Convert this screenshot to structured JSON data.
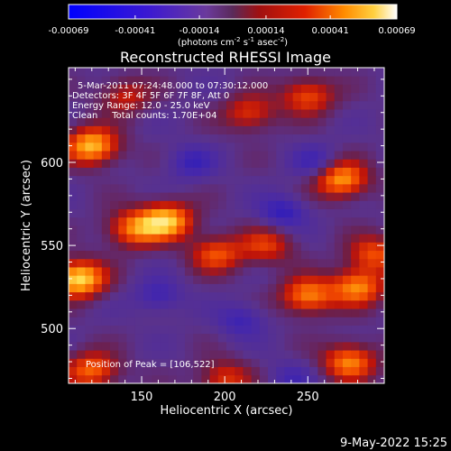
{
  "chart_data": {
    "type": "heatmap",
    "title": "Reconstructed RHESSI Image",
    "xlabel": "Heliocentric X (arcsec)",
    "ylabel": "Heliocentric Y (arcsec)",
    "xlim": [
      106,
      296
    ],
    "ylim": [
      467,
      657
    ],
    "x_ticks": [
      150,
      200,
      250
    ],
    "y_ticks": [
      500,
      550,
      600
    ],
    "colorbar": {
      "label_main": "(photons cm",
      "label_exp1": "-2",
      "label_mid1": " s",
      "label_exp2": "-1",
      "label_mid2": " asec",
      "label_exp3": "-2",
      "label_end": ")",
      "ticks": [
        "-0.00069",
        "-0.00041",
        "-0.00014",
        "0.00014",
        "0.00041",
        "0.00069"
      ],
      "range": [
        -0.00069,
        0.00069
      ]
    },
    "annotations": {
      "time_range": "5-Mar-2011 07:24:48.000 to 07:30:12.000",
      "detectors": "Detectors: 3F 4F 5F 6F 7F 8F, Att 0",
      "energy_range": "Energy Range: 12.0 - 25.0 keV",
      "clean_total": "Clean     Total counts: 1.70E+04",
      "peak": "Position of Peak = [106,522]"
    },
    "peak_position": [
      106,
      522
    ],
    "hot_regions": [
      {
        "x": 120,
        "y": 610,
        "level": 0.55
      },
      {
        "x": 112,
        "y": 530,
        "level": 0.62
      },
      {
        "x": 165,
        "y": 565,
        "level": 0.55
      },
      {
        "x": 145,
        "y": 560,
        "level": 0.4
      },
      {
        "x": 195,
        "y": 545,
        "level": 0.35
      },
      {
        "x": 225,
        "y": 550,
        "level": 0.3
      },
      {
        "x": 270,
        "y": 590,
        "level": 0.5
      },
      {
        "x": 250,
        "y": 520,
        "level": 0.45
      },
      {
        "x": 280,
        "y": 525,
        "level": 0.45
      },
      {
        "x": 290,
        "y": 545,
        "level": 0.35
      },
      {
        "x": 275,
        "y": 480,
        "level": 0.45
      },
      {
        "x": 120,
        "y": 475,
        "level": 0.4
      },
      {
        "x": 200,
        "y": 470,
        "level": 0.3
      },
      {
        "x": 215,
        "y": 630,
        "level": 0.3
      },
      {
        "x": 140,
        "y": 640,
        "level": 0.25
      },
      {
        "x": 250,
        "y": 640,
        "level": 0.35
      }
    ],
    "cold_regions": [
      {
        "x": 235,
        "y": 570,
        "level": -0.25
      },
      {
        "x": 160,
        "y": 520,
        "level": -0.2
      },
      {
        "x": 210,
        "y": 505,
        "level": -0.2
      },
      {
        "x": 255,
        "y": 600,
        "level": -0.2
      },
      {
        "x": 180,
        "y": 600,
        "level": -0.2
      },
      {
        "x": 240,
        "y": 470,
        "level": -0.15
      }
    ],
    "footer_date": "9-May-2022 15:25"
  }
}
